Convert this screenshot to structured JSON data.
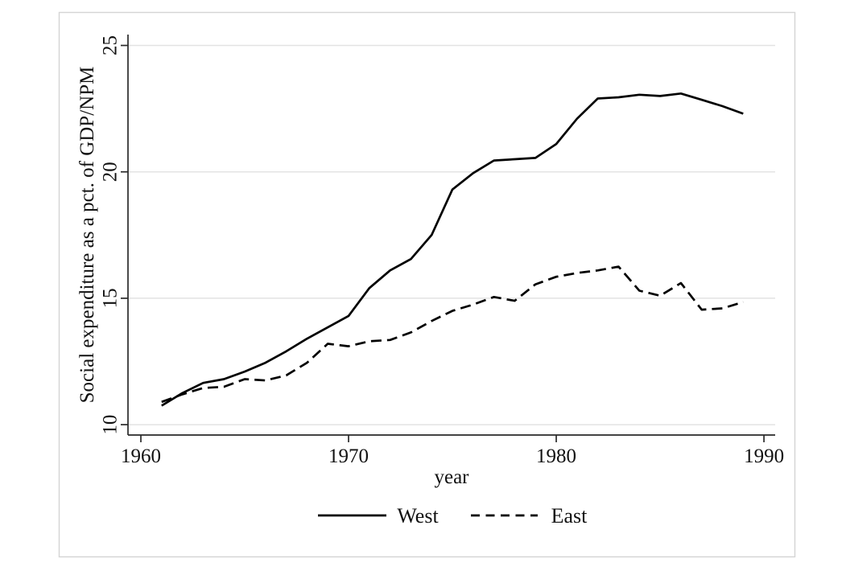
{
  "figure": {
    "background": "#ffffff",
    "frame_border_color": "#d4d4d4"
  },
  "chart_data": {
    "type": "line",
    "title": "",
    "xlabel": "year",
    "ylabel": "Social expenditure as a pct. of GDP/NPM",
    "x": [
      1961,
      1962,
      1963,
      1964,
      1965,
      1966,
      1967,
      1968,
      1969,
      1970,
      1971,
      1972,
      1973,
      1974,
      1975,
      1976,
      1977,
      1978,
      1979,
      1980,
      1981,
      1982,
      1983,
      1984,
      1985,
      1986,
      1987,
      1988,
      1989
    ],
    "series": [
      {
        "name": "West",
        "style": "solid",
        "values": [
          10.75,
          11.25,
          11.65,
          11.8,
          12.1,
          12.45,
          12.9,
          13.4,
          13.85,
          14.3,
          15.4,
          16.1,
          16.55,
          17.5,
          19.3,
          19.95,
          20.45,
          20.5,
          20.55,
          21.1,
          22.1,
          22.9,
          22.95,
          23.05,
          23.0,
          23.1,
          22.85,
          22.6,
          22.3
        ]
      },
      {
        "name": "East",
        "style": "dashed",
        "values": [
          10.9,
          11.2,
          11.45,
          11.5,
          11.8,
          11.75,
          11.95,
          12.45,
          13.2,
          13.1,
          13.3,
          13.35,
          13.65,
          14.1,
          14.5,
          14.75,
          15.05,
          14.9,
          15.55,
          15.85,
          16.0,
          16.1,
          16.25,
          15.3,
          15.1,
          15.6,
          14.55,
          14.6,
          14.85
        ]
      }
    ],
    "xticks": [
      1960,
      1970,
      1980,
      1990
    ],
    "yticks": [
      10,
      15,
      20,
      25
    ],
    "xlim": [
      1959.38,
      1990.54
    ],
    "ylim": [
      9.59,
      25.43
    ],
    "grid": "horizontal",
    "legend_position": "bottom-center",
    "colors": {
      "line": "#000000",
      "grid": "#e3e3e3",
      "axis": "#2a2a2a",
      "text": "#111111"
    }
  }
}
